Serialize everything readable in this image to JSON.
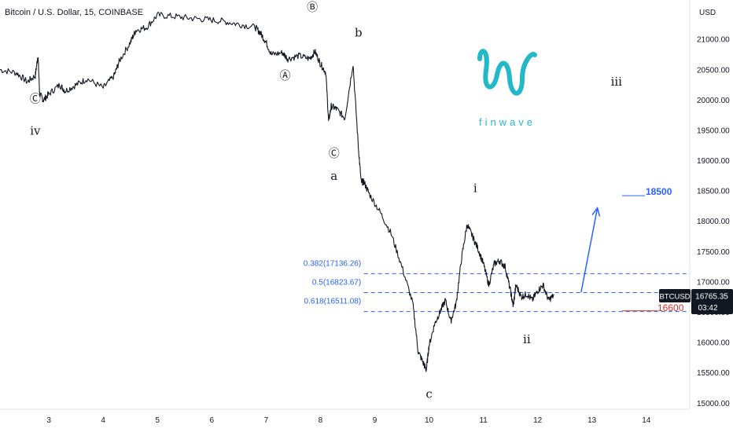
{
  "header": {
    "title": "Bitcoin / U.S. Dollar, 15, COINBASE"
  },
  "logo": {
    "text": "finwave",
    "color": "#22b8c8"
  },
  "chart_data": {
    "type": "line",
    "symbol": "BTCUSD",
    "last_price": "16765.35",
    "countdown": "03:42",
    "y_unit": "USD",
    "ylim": [
      14900,
      21650
    ],
    "x_ticks": [
      "3",
      "4",
      "5",
      "6",
      "7",
      "8",
      "9",
      "10",
      "11",
      "12",
      "13",
      "14"
    ],
    "x_tick_values": [
      3,
      4,
      5,
      6,
      7,
      8,
      9,
      10,
      11,
      12,
      13,
      14
    ],
    "xlim": [
      2.1,
      14.8
    ],
    "y_ticks": [
      "15000.00",
      "15500.00",
      "16000.00",
      "16500.00",
      "17000.00",
      "17500.00",
      "18000.00",
      "18500.00",
      "19000.00",
      "19500.00",
      "20000.00",
      "20500.00",
      "21000.00"
    ],
    "y_tick_values": [
      15000,
      15500,
      16000,
      16500,
      17000,
      17500,
      18000,
      18500,
      19000,
      19500,
      20000,
      20500,
      21000
    ],
    "series": [
      {
        "x": [
          2.1,
          2.4,
          2.6,
          2.75,
          2.8,
          2.83,
          2.9,
          3.0,
          3.2,
          3.3,
          3.5,
          3.7,
          4.0,
          4.2,
          4.3,
          4.5,
          4.6,
          4.8,
          5.0,
          5.3,
          5.6,
          5.9,
          6.2,
          6.5,
          6.8,
          6.9,
          7.0,
          7.1,
          7.3,
          7.4,
          7.6,
          7.8,
          7.9,
          8.0,
          8.1,
          8.15,
          8.2,
          8.3,
          8.45,
          8.6,
          8.7,
          8.75,
          8.8,
          8.9,
          9.1,
          9.3,
          9.5,
          9.7,
          9.8,
          9.9,
          9.95,
          10.0,
          10.1,
          10.2,
          10.3,
          10.4,
          10.5,
          10.6,
          10.7,
          10.8,
          10.9,
          11.0,
          11.1,
          11.2,
          11.3,
          11.4,
          11.5,
          11.55,
          11.6,
          11.7,
          11.8,
          11.9,
          12.0,
          12.1,
          12.2,
          12.3
        ],
        "y": [
          20500,
          20450,
          20300,
          20400,
          20750,
          20100,
          20000,
          20100,
          20250,
          20150,
          20250,
          20350,
          20200,
          20400,
          20650,
          20950,
          21150,
          21200,
          21400,
          21380,
          21350,
          21330,
          21300,
          21250,
          21200,
          21100,
          20950,
          20750,
          20780,
          20680,
          20730,
          20680,
          20800,
          20600,
          20450,
          19650,
          19900,
          19850,
          19700,
          20600,
          19200,
          18650,
          18650,
          18450,
          18150,
          17800,
          17250,
          16650,
          15850,
          15650,
          15550,
          15950,
          16300,
          16500,
          16700,
          16350,
          16650,
          17400,
          17950,
          17750,
          17550,
          17300,
          16950,
          17300,
          17350,
          17250,
          16850,
          16600,
          16950,
          16750,
          16800,
          16700,
          16850,
          16950,
          16700,
          16780
        ]
      }
    ],
    "fib_levels": [
      {
        "label": "0.382(17136.26)",
        "value": 17136.26
      },
      {
        "label": "0.5(16823.67)",
        "value": 16823.67
      },
      {
        "label": "0.618(16511.08)",
        "value": 16511.08
      }
    ],
    "target_label": "18500",
    "target_value": 18500,
    "support_label": "16600",
    "support_value": 16600,
    "annotations": [
      {
        "text": "Ⓒ",
        "x": 2.75,
        "y": 19960
      },
      {
        "text": "iv",
        "x": 2.75,
        "y": 19430
      },
      {
        "text": "Ⓐ",
        "x": 7.35,
        "y": 20340
      },
      {
        "text": "Ⓑ",
        "x": 7.85,
        "y": 21470
      },
      {
        "text": "b",
        "x": 8.7,
        "y": 21050
      },
      {
        "text": "Ⓒ",
        "x": 8.25,
        "y": 19060
      },
      {
        "text": "a",
        "x": 8.25,
        "y": 18680
      },
      {
        "text": "c",
        "x": 10.0,
        "y": 15090
      },
      {
        "text": "i",
        "x": 10.85,
        "y": 18480
      },
      {
        "text": "ii",
        "x": 11.8,
        "y": 15990
      },
      {
        "text": "iii",
        "x": 13.45,
        "y": 20240
      }
    ],
    "arrow": {
      "from": [
        12.8,
        16830
      ],
      "to": [
        13.1,
        18220
      ]
    },
    "colors": {
      "price": "#131722",
      "fib": "#2962ff",
      "target": "#2962ff",
      "support": "#d32f2f",
      "price_tag": "#131722",
      "axis_text": "#131722"
    }
  }
}
